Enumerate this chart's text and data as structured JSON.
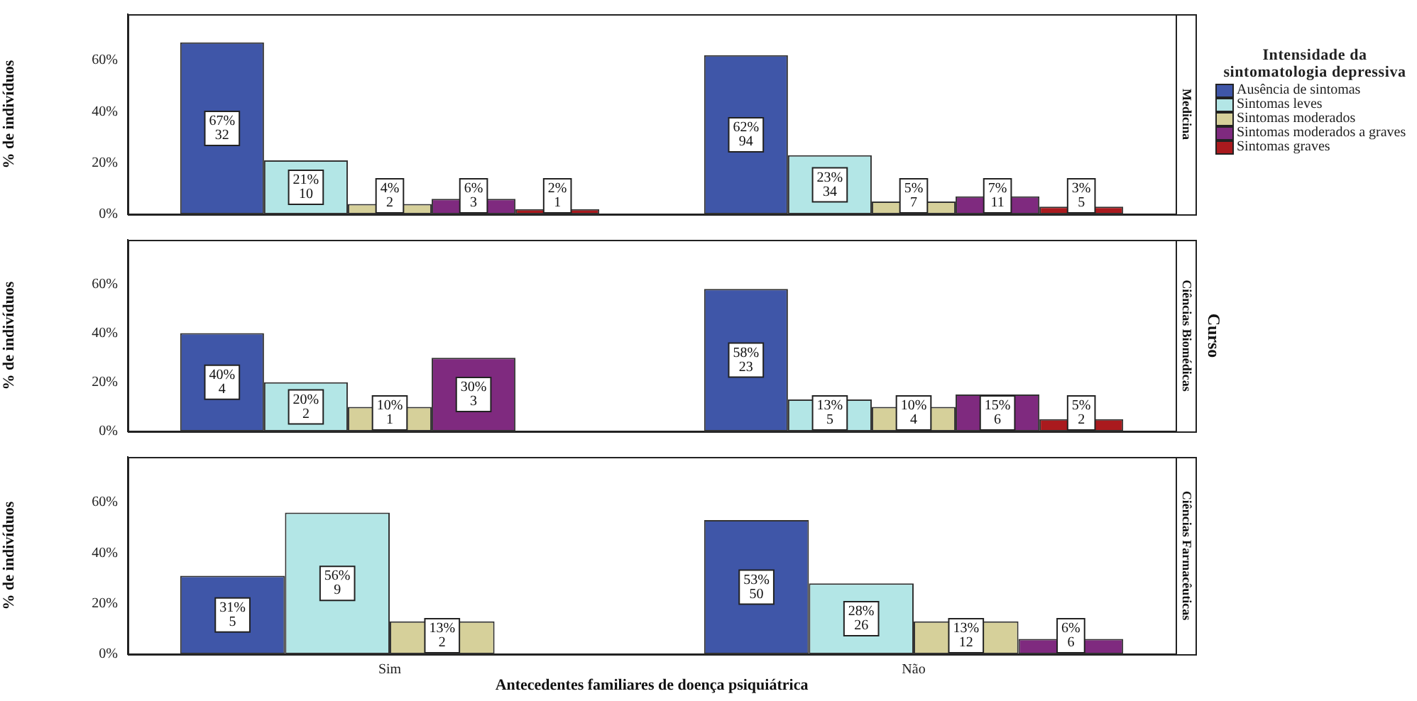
{
  "chart_data": [
    {
      "type": "bar",
      "title": "Medicina",
      "ylabel": "% de indivíduos",
      "categories": [
        null,
        null
      ],
      "ylim": [
        0,
        78
      ],
      "yticks": [
        {
          "value": 0,
          "label": "0%"
        },
        {
          "value": 20,
          "label": "20%"
        },
        {
          "value": 40,
          "label": "40%"
        },
        {
          "value": 60,
          "label": "60%"
        }
      ],
      "tick_labels": "y",
      "legend": "right",
      "legend_title": "Intensidade da sintomatologia depressiva",
      "series": [
        {
          "name": "Ausência de sintomas",
          "color": "#3f56a8",
          "values": [
            67,
            62
          ],
          "value_labels": [
            "67%\n32",
            "62%\n94"
          ]
        },
        {
          "name": "Sintomas leves",
          "color": "#b3e6e6",
          "values": [
            21,
            23
          ],
          "value_labels": [
            "21%\n10",
            "23%\n34"
          ]
        },
        {
          "name": "Sintomas moderados",
          "color": "#d6d09a",
          "values": [
            4,
            5
          ],
          "value_labels": [
            "4%\n2",
            "5%\n7"
          ]
        },
        {
          "name": "Sintomas moderados a graves",
          "color": "#7f2a7f",
          "values": [
            6,
            7
          ],
          "value_labels": [
            "6%\n3",
            "7%\n11"
          ]
        },
        {
          "name": "Sintomas graves",
          "color": "#aa1a1e",
          "values": [
            2,
            3
          ],
          "value_labels": [
            "2%\n1",
            "3%\n5"
          ]
        }
      ]
    },
    {
      "type": "bar",
      "title": "Ciências Biomédicas",
      "ylabel": "% de indivíduos",
      "categories": [
        null,
        null
      ],
      "ylim": [
        0,
        78
      ],
      "yticks": [
        {
          "value": 0,
          "label": "0%"
        },
        {
          "value": 20,
          "label": "20%"
        },
        {
          "value": 40,
          "label": "40%"
        },
        {
          "value": 60,
          "label": "60%"
        }
      ],
      "tick_labels": "y",
      "annotations": [
        "Curso"
      ],
      "series": [
        {
          "color": "#3f56a8",
          "values": [
            40,
            58
          ],
          "value_labels": [
            "40%\n4",
            "58%\n23"
          ]
        },
        {
          "color": "#b3e6e6",
          "values": [
            20,
            13
          ],
          "value_labels": [
            "20%\n2",
            "13%\n5"
          ]
        },
        {
          "color": "#d6d09a",
          "values": [
            10,
            10
          ],
          "value_labels": [
            "10%\n1",
            "10%\n4"
          ]
        },
        {
          "color": "#7f2a7f",
          "values": [
            30,
            15
          ],
          "value_labels": [
            "30%\n3",
            "15%\n6"
          ]
        },
        {
          "color": "#aa1a1e",
          "values": [
            null,
            5
          ],
          "value_labels": [
            null,
            "5%\n2"
          ]
        }
      ]
    },
    {
      "type": "bar",
      "title": "Ciências Farmacêuticas",
      "ylabel": "% de indivíduos",
      "xlabel": "Antecedentes familiares de doença psiquiátrica",
      "categories": [
        "Sim",
        "Não"
      ],
      "ylim": [
        0,
        78
      ],
      "yticks": [
        {
          "value": 0,
          "label": "0%"
        },
        {
          "value": 20,
          "label": "20%"
        },
        {
          "value": 40,
          "label": "40%"
        },
        {
          "value": 60,
          "label": "60%"
        }
      ],
      "series": [
        {
          "color": "#3f56a8",
          "values": [
            31,
            53
          ],
          "value_labels": [
            "31%\n5",
            "53%\n50"
          ]
        },
        {
          "color": "#b3e6e6",
          "values": [
            56,
            28
          ],
          "value_labels": [
            "56%\n9",
            "28%\n26"
          ]
        },
        {
          "color": "#d6d09a",
          "values": [
            13,
            13
          ],
          "value_labels": [
            "13%\n2",
            "13%\n12"
          ]
        },
        {
          "color": "#7f2a7f",
          "values": [
            null,
            6
          ],
          "value_labels": [
            null,
            "6%\n6"
          ]
        }
      ]
    }
  ]
}
